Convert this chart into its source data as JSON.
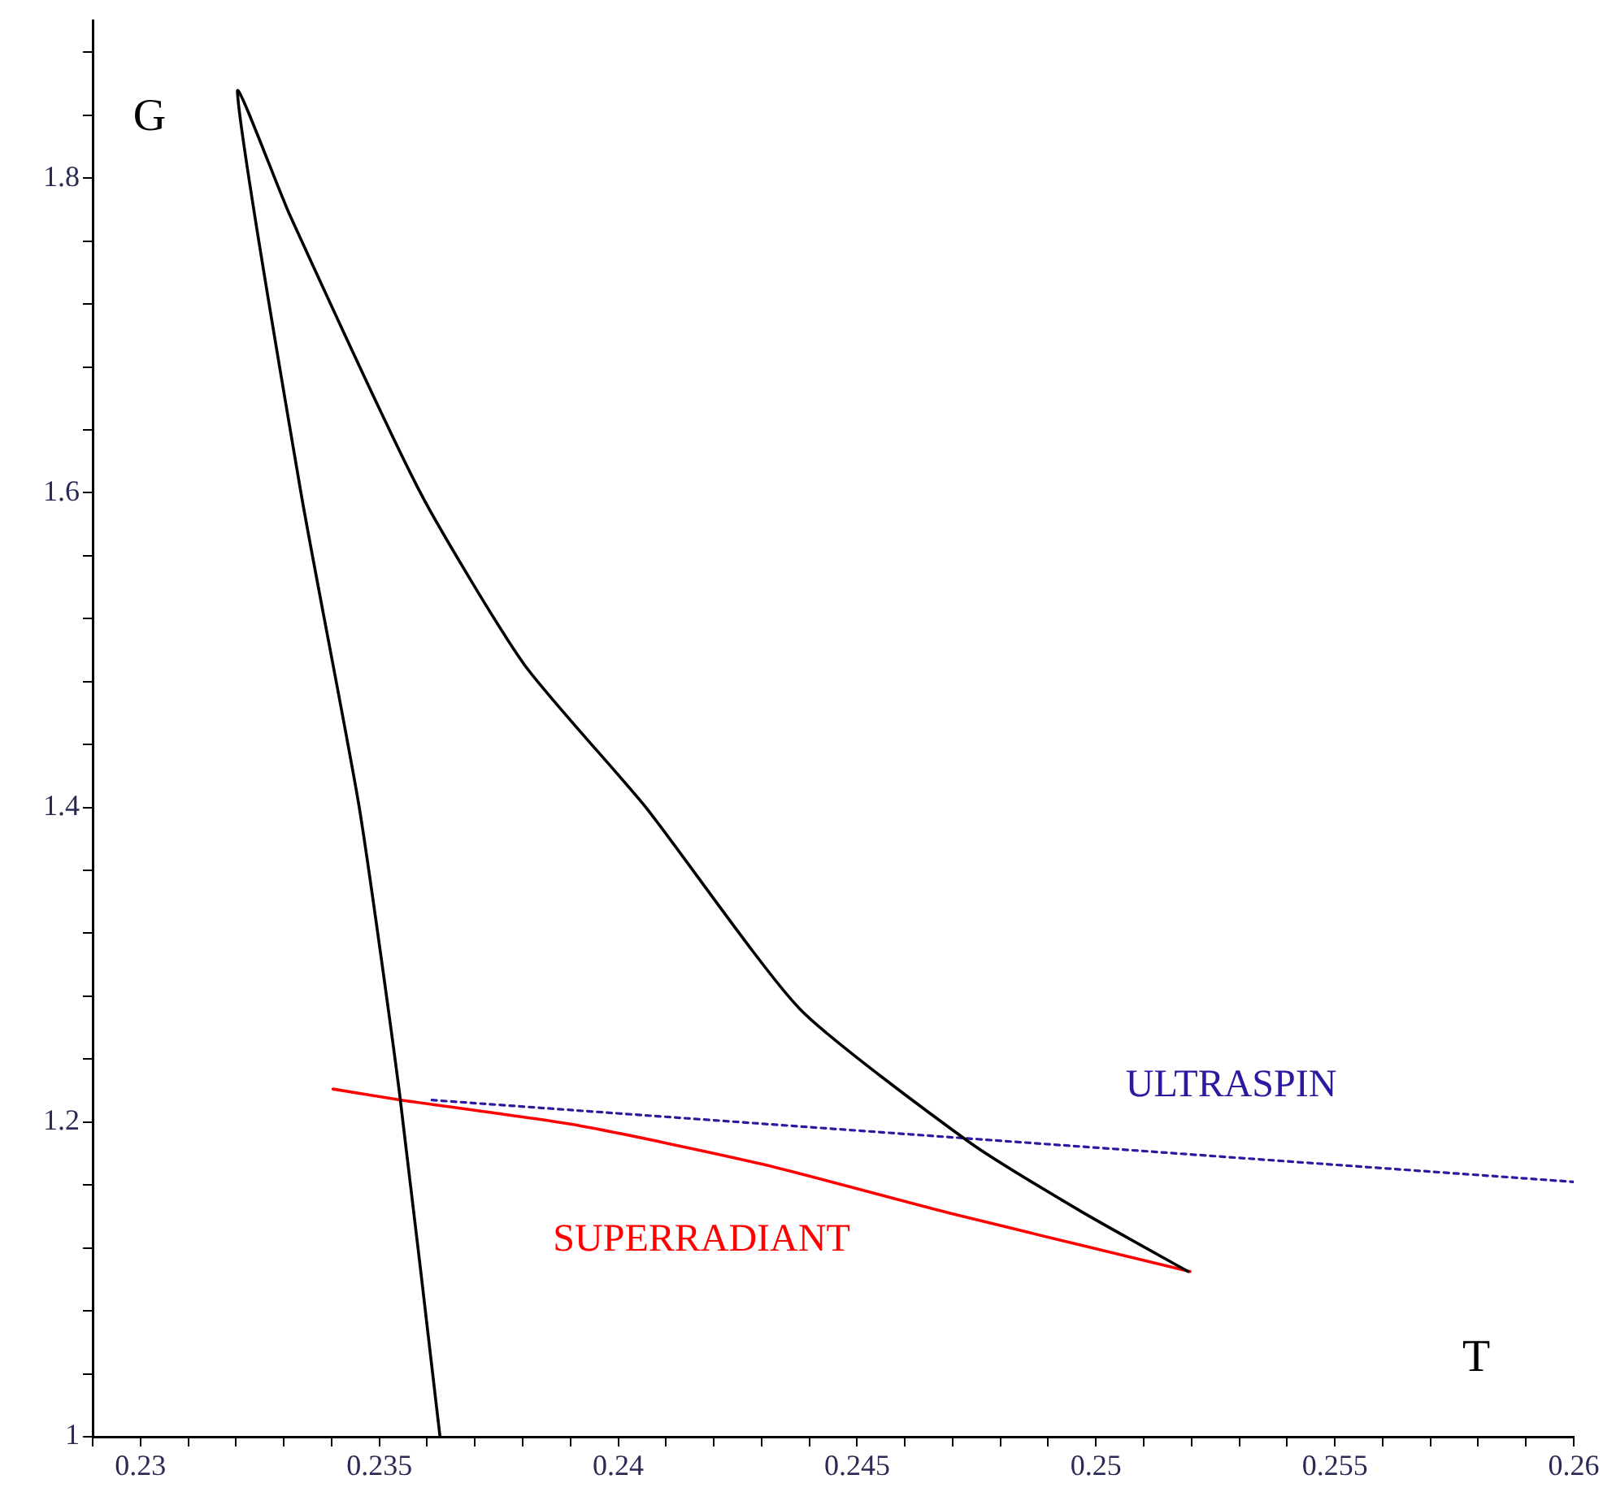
{
  "chart_data": {
    "type": "line",
    "xlabel": "T",
    "ylabel": "G",
    "xlim": [
      0.229,
      0.26
    ],
    "ylim": [
      1,
      1.9
    ],
    "xticks": [
      {
        "value": 0.229,
        "label": null
      },
      0.23,
      {
        "value": 0.231,
        "label": null
      },
      {
        "value": 0.232,
        "label": null
      },
      {
        "value": 0.233,
        "label": null
      },
      {
        "value": 0.234,
        "label": null
      },
      0.235,
      {
        "value": 0.236,
        "label": null
      },
      {
        "value": 0.237,
        "label": null
      },
      {
        "value": 0.238,
        "label": null
      },
      {
        "value": 0.239,
        "label": null
      },
      0.24,
      {
        "value": 0.241,
        "label": null
      },
      {
        "value": 0.242,
        "label": null
      },
      {
        "value": 0.243,
        "label": null
      },
      {
        "value": 0.244,
        "label": null
      },
      0.245,
      {
        "value": 0.246,
        "label": null
      },
      {
        "value": 0.247,
        "label": null
      },
      {
        "value": 0.248,
        "label": null
      },
      {
        "value": 0.249,
        "label": null
      },
      0.25,
      {
        "value": 0.251,
        "label": null
      },
      {
        "value": 0.252,
        "label": null
      },
      {
        "value": 0.253,
        "label": null
      },
      {
        "value": 0.254,
        "label": null
      },
      0.255,
      {
        "value": 0.256,
        "label": null
      },
      {
        "value": 0.257,
        "label": null
      },
      {
        "value": 0.258,
        "label": null
      },
      {
        "value": 0.259,
        "label": null
      },
      0.26
    ],
    "yticks": [
      1,
      {
        "value": 1.04,
        "label": null
      },
      {
        "value": 1.08,
        "label": null
      },
      {
        "value": 1.12,
        "label": null
      },
      {
        "value": 1.16,
        "label": null
      },
      1.2,
      {
        "value": 1.24,
        "label": null
      },
      {
        "value": 1.28,
        "label": null
      },
      {
        "value": 1.32,
        "label": null
      },
      {
        "value": 1.36,
        "label": null
      },
      1.4,
      {
        "value": 1.44,
        "label": null
      },
      {
        "value": 1.48,
        "label": null
      },
      {
        "value": 1.52,
        "label": null
      },
      {
        "value": 1.56,
        "label": null
      },
      1.6,
      {
        "value": 1.64,
        "label": null
      },
      {
        "value": 1.68,
        "label": null
      },
      {
        "value": 1.72,
        "label": null
      },
      {
        "value": 1.76,
        "label": null
      },
      1.8,
      {
        "value": 1.84,
        "label": null
      },
      {
        "value": 1.88,
        "label": null
      }
    ],
    "grid": false,
    "legend": false,
    "marker": "none",
    "series": [
      {
        "color": "#000000",
        "line_style": "solid",
        "x": [
          0.23627,
          0.23542,
          0.23458,
          0.23336,
          0.23203,
          0.23312,
          0.23586,
          0.23803,
          0.24058,
          0.2438,
          0.24736,
          0.2497,
          0.25193
        ],
        "values": [
          1.0,
          1.219,
          1.4,
          1.6,
          1.855,
          1.777,
          1.6,
          1.491,
          1.4,
          1.272,
          1.187,
          1.143,
          1.105
        ]
      },
      {
        "name": "ULTRASPIN",
        "color": "#2a1aa0",
        "line_style": "dotted",
        "x": [
          0.2361,
          0.26
        ],
        "values": [
          1.214,
          1.162
        ]
      },
      {
        "name": "SUPERRADIANT",
        "color": "#ff0000",
        "line_style": "solid",
        "x": [
          0.23403,
          0.23546,
          0.23915,
          0.24305,
          0.24695,
          0.25197
        ],
        "values": [
          1.221,
          1.214,
          1.198,
          1.173,
          1.142,
          1.105
        ]
      }
    ]
  }
}
